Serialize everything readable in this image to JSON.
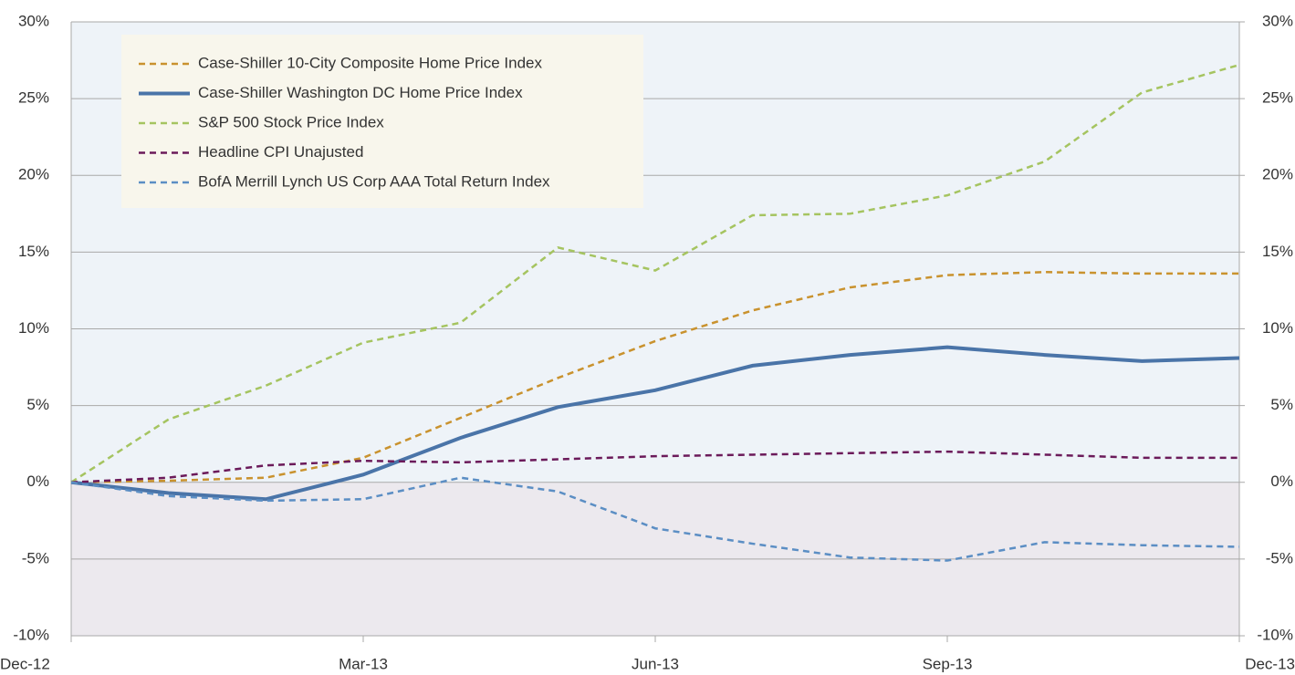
{
  "chart_data": {
    "type": "line",
    "categories": [
      "Dec-12",
      null,
      null,
      "Mar-13",
      null,
      null,
      "Jun-13",
      null,
      null,
      "Sep-13",
      null,
      null,
      "Dec-13"
    ],
    "series": [
      {
        "name": "Case-Shiller 10-City Composite Home Price Index",
        "color": "#c9922e",
        "dash": true,
        "values": [
          0,
          0.1,
          0.3,
          1.6,
          4.2,
          6.8,
          9.2,
          11.2,
          12.7,
          13.5,
          13.7,
          13.6,
          13.6
        ]
      },
      {
        "name": "Case-Shiller Washington DC Home Price Index",
        "color": "#4a74a8",
        "dash": false,
        "values": [
          0,
          -0.7,
          -1.1,
          0.5,
          2.9,
          4.9,
          6.0,
          7.6,
          8.3,
          8.8,
          8.3,
          7.9,
          8.1
        ]
      },
      {
        "name": "S&P 500 Stock Price Index",
        "color": "#a5c460",
        "dash": true,
        "values": [
          0,
          4.1,
          6.3,
          9.1,
          10.4,
          15.3,
          13.8,
          17.4,
          17.5,
          18.7,
          20.9,
          25.4,
          27.2
        ]
      },
      {
        "name": "Headline CPI Unajusted",
        "color": "#6b1a5a",
        "dash": true,
        "values": [
          0,
          0.3,
          1.1,
          1.4,
          1.3,
          1.5,
          1.7,
          1.8,
          1.9,
          2.0,
          1.8,
          1.6,
          1.6
        ]
      },
      {
        "name": "BofA Merrill Lynch US Corp AAA Total Return Index",
        "color": "#5b8ec4",
        "dash": true,
        "values": [
          0,
          -0.9,
          -1.2,
          -1.1,
          0.3,
          -0.6,
          -3.0,
          -4.0,
          -4.9,
          -5.1,
          -3.9,
          -4.1,
          -4.2
        ]
      }
    ],
    "ylim": [
      -10,
      30
    ],
    "yticks": [
      {
        "value": -10,
        "label": "-10%"
      },
      {
        "value": -5,
        "label": "-5%"
      },
      {
        "value": 0,
        "label": "0%"
      },
      {
        "value": 5,
        "label": "5%"
      },
      {
        "value": 10,
        "label": "10%"
      },
      {
        "value": 15,
        "label": "15%"
      },
      {
        "value": 20,
        "label": "20%"
      },
      {
        "value": 25,
        "label": "25%"
      },
      {
        "value": 30,
        "label": "30%"
      }
    ],
    "y2lim": [
      -10,
      30
    ],
    "y2ticks": [
      {
        "value": -10,
        "label": "-10%"
      },
      {
        "value": -5,
        "label": "-5%"
      },
      {
        "value": 0,
        "label": "0%"
      },
      {
        "value": 5,
        "label": "5%"
      },
      {
        "value": 10,
        "label": "10%"
      },
      {
        "value": 15,
        "label": "15%"
      },
      {
        "value": 20,
        "label": "20%"
      },
      {
        "value": 25,
        "label": "25%"
      },
      {
        "value": 30,
        "label": "30%"
      }
    ],
    "grid": true,
    "legend": "upper left"
  }
}
